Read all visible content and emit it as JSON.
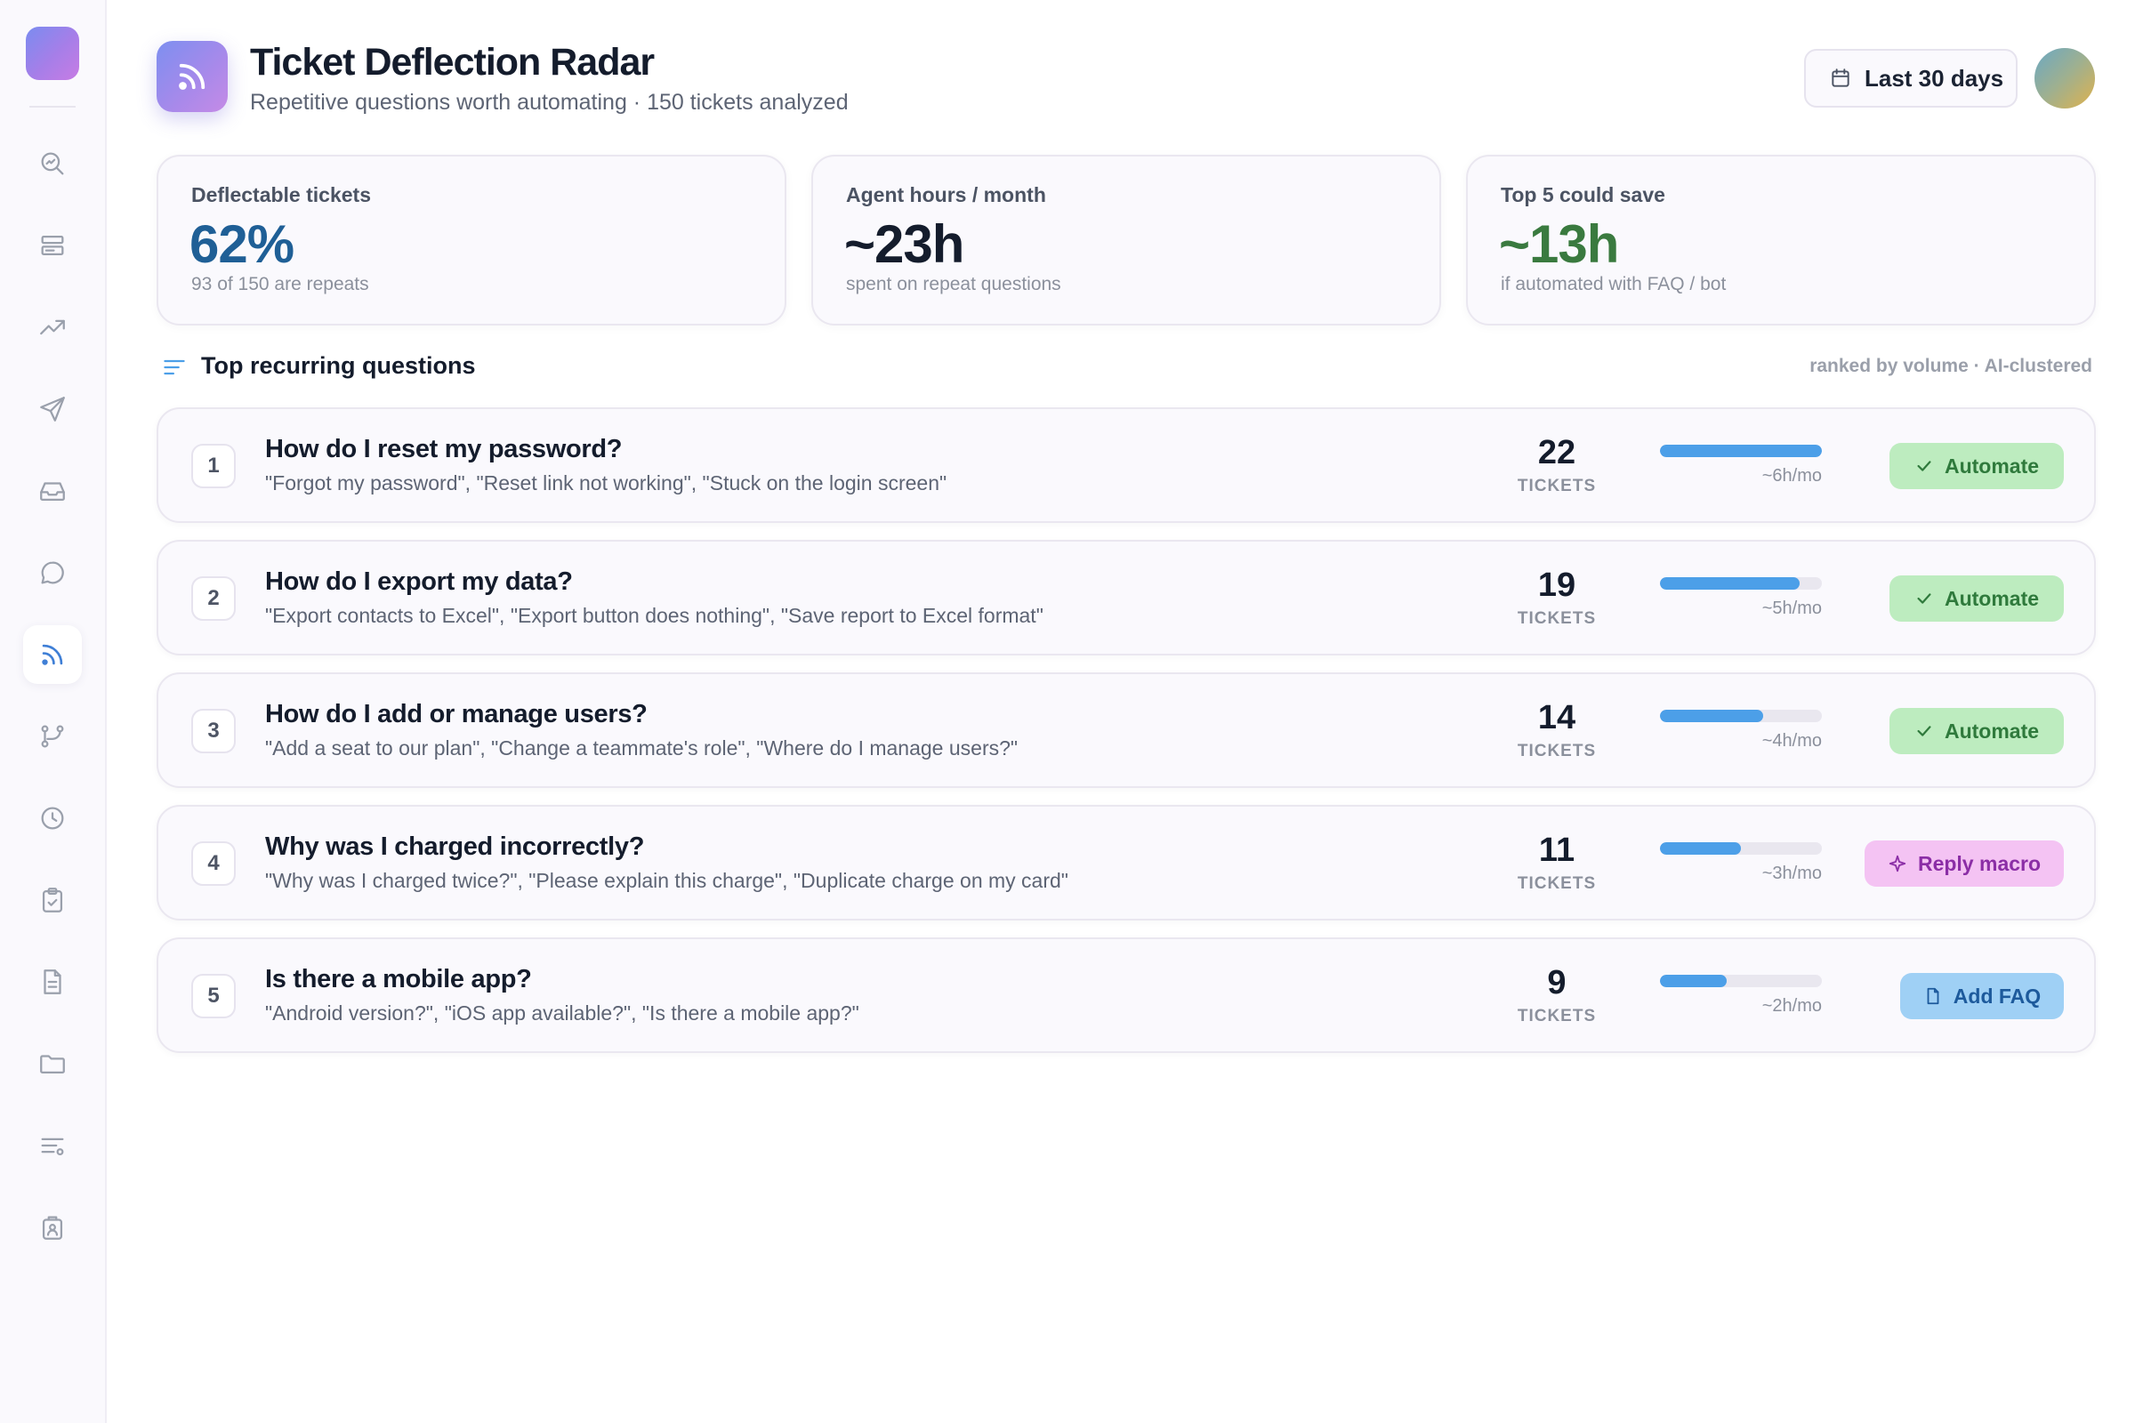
{
  "sidebar": {
    "items": [
      {
        "icon": "search-analytics-icon",
        "active": false
      },
      {
        "icon": "list-box-icon",
        "active": false
      },
      {
        "icon": "trend-up-icon",
        "active": false
      },
      {
        "icon": "send-icon",
        "active": false
      },
      {
        "icon": "inbox-icon",
        "active": false
      },
      {
        "icon": "chat-bubble-icon",
        "active": false
      },
      {
        "icon": "rss-icon",
        "active": true
      },
      {
        "icon": "branch-icon",
        "active": false
      },
      {
        "icon": "clock-icon",
        "active": false
      },
      {
        "icon": "clipboard-check-icon",
        "active": false
      },
      {
        "icon": "document-icon",
        "active": false
      },
      {
        "icon": "folder-icon",
        "active": false
      },
      {
        "icon": "filter-list-icon",
        "active": false
      },
      {
        "icon": "contact-badge-icon",
        "active": false
      }
    ]
  },
  "header": {
    "title": "Ticket Deflection Radar",
    "subtitle": "Repetitive questions worth automating · 150 tickets analyzed",
    "date_range": "Last 30 days"
  },
  "kpis": [
    {
      "label": "Deflectable tickets",
      "value": "62%",
      "sub": "93 of 150 are repeats",
      "color": "#1f5f96"
    },
    {
      "label": "Agent hours / month",
      "value": "~23h",
      "sub": "spent on repeat questions",
      "color": "#141c2c"
    },
    {
      "label": "Top 5 could save",
      "value": "~13h",
      "sub": "if automated with FAQ / bot",
      "color": "#3a7a3f"
    }
  ],
  "section": {
    "title": "Top recurring questions",
    "meta": "ranked by volume · AI-clustered"
  },
  "questions": [
    {
      "rank": "1",
      "title": "How do I reset my password?",
      "examples": "\"Forgot my password\", \"Reset link not working\", \"Stuck on the login screen\"",
      "count": 22,
      "count_label": "TICKETS",
      "hours": "~6h/mo",
      "bar": 1.0,
      "action": "Automate",
      "action_type": "automate"
    },
    {
      "rank": "2",
      "title": "How do I export my data?",
      "examples": "\"Export contacts to Excel\", \"Export button does nothing\", \"Save report to Excel format\"",
      "count": 19,
      "count_label": "TICKETS",
      "hours": "~5h/mo",
      "bar": 0.86,
      "action": "Automate",
      "action_type": "automate"
    },
    {
      "rank": "3",
      "title": "How do I add or manage users?",
      "examples": "\"Add a seat to our plan\", \"Change a teammate's role\", \"Where do I manage users?\"",
      "count": 14,
      "count_label": "TICKETS",
      "hours": "~4h/mo",
      "bar": 0.64,
      "action": "Automate",
      "action_type": "automate"
    },
    {
      "rank": "4",
      "title": "Why was I charged incorrectly?",
      "examples": "\"Why was I charged twice?\", \"Please explain this charge\", \"Duplicate charge on my card\"",
      "count": 11,
      "count_label": "TICKETS",
      "hours": "~3h/mo",
      "bar": 0.5,
      "action": "Reply macro",
      "action_type": "macro"
    },
    {
      "rank": "5",
      "title": "Is there a mobile app?",
      "examples": "\"Android version?\", \"iOS app available?\", \"Is there a mobile app?\"",
      "count": 9,
      "count_label": "TICKETS",
      "hours": "~2h/mo",
      "bar": 0.41,
      "action": "Add FAQ",
      "action_type": "faq"
    }
  ]
}
